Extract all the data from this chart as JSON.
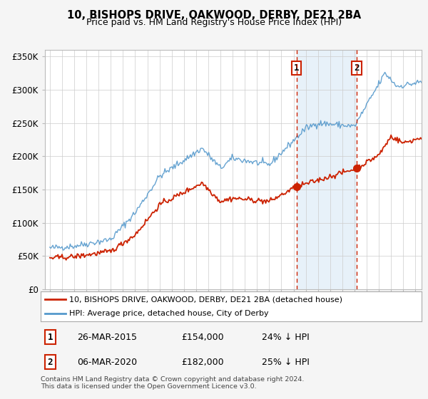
{
  "title": "10, BISHOPS DRIVE, OAKWOOD, DERBY, DE21 2BA",
  "subtitle": "Price paid vs. HM Land Registry's House Price Index (HPI)",
  "legend_line1": "10, BISHOPS DRIVE, OAKWOOD, DERBY, DE21 2BA (detached house)",
  "legend_line2": "HPI: Average price, detached house, City of Derby",
  "annotation1_date": "26-MAR-2015",
  "annotation1_price": "£154,000",
  "annotation1_hpi": "24% ↓ HPI",
  "annotation2_date": "06-MAR-2020",
  "annotation2_price": "£182,000",
  "annotation2_hpi": "25% ↓ HPI",
  "footnote": "Contains HM Land Registry data © Crown copyright and database right 2024.\nThis data is licensed under the Open Government Licence v3.0.",
  "red_color": "#cc2200",
  "blue_color": "#5599cc",
  "shade_color": "#d8e8f5",
  "vline_color": "#cc2200",
  "fig_bg": "#f5f5f5",
  "plot_bg": "#ffffff",
  "ylim": [
    0,
    360000
  ],
  "yticks": [
    0,
    50000,
    100000,
    150000,
    200000,
    250000,
    300000,
    350000
  ],
  "ytick_labels": [
    "£0",
    "£50K",
    "£100K",
    "£150K",
    "£200K",
    "£250K",
    "£300K",
    "£350K"
  ],
  "sale1_x": 2015.23,
  "sale1_y": 154000,
  "sale2_x": 2020.18,
  "sale2_y": 182000,
  "vline1_x": 2015.23,
  "vline2_x": 2020.18,
  "xmin": 1995.0,
  "xmax": 2025.5
}
